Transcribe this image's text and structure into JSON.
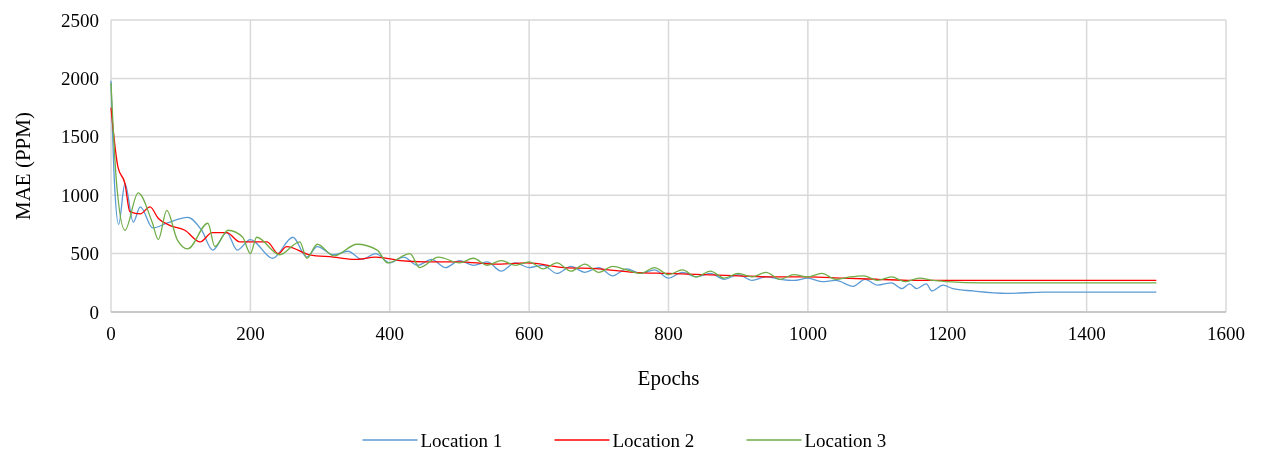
{
  "chart_data": {
    "type": "line",
    "xlabel": "Epochs",
    "ylabel": "MAE (PPM)",
    "xlim": [
      0,
      1600
    ],
    "xticks": [
      0,
      200,
      400,
      600,
      800,
      1000,
      1200,
      1400,
      1600
    ],
    "ylim": [
      0,
      2500
    ],
    "yticks": [
      0,
      500,
      1000,
      1500,
      2000,
      2500
    ],
    "grid": true,
    "legend": "bottom",
    "marker": "none",
    "line_style": "solid",
    "series": [
      {
        "name": "Location 1",
        "color": "#5b9bd5",
        "x": [
          0,
          5,
          11,
          20,
          32,
          42,
          60,
          80,
          110,
          130,
          146,
          166,
          181,
          200,
          232,
          261,
          281,
          296,
          319,
          340,
          360,
          380,
          400,
          420,
          440,
          460,
          480,
          500,
          520,
          540,
          560,
          580,
          600,
          620,
          640,
          660,
          680,
          700,
          720,
          740,
          760,
          780,
          800,
          820,
          840,
          860,
          880,
          900,
          920,
          940,
          960,
          980,
          1000,
          1020,
          1040,
          1065,
          1082,
          1100,
          1120,
          1135,
          1146,
          1156,
          1170,
          1178,
          1194,
          1208,
          1237,
          1285,
          1340,
          1395,
          1450,
          1500
        ],
        "values": [
          1980,
          1100,
          750,
          1100,
          770,
          900,
          720,
          760,
          810,
          700,
          530,
          680,
          530,
          620,
          460,
          640,
          470,
          560,
          490,
          520,
          450,
          500,
          420,
          470,
          400,
          450,
          380,
          440,
          400,
          430,
          350,
          420,
          380,
          400,
          330,
          390,
          340,
          380,
          310,
          370,
          330,
          360,
          290,
          340,
          300,
          330,
          280,
          320,
          270,
          300,
          280,
          270,
          290,
          260,
          270,
          220,
          280,
          230,
          250,
          200,
          240,
          200,
          240,
          180,
          230,
          200,
          180,
          160,
          170,
          170,
          170,
          170
        ]
      },
      {
        "name": "Location 2",
        "color": "#ff0000",
        "x": [
          0,
          10,
          20,
          27,
          42,
          56,
          68,
          85,
          106,
          128,
          145,
          166,
          185,
          224,
          240,
          252,
          285,
          319,
          350,
          380,
          415,
          450,
          500,
          550,
          597,
          650,
          700,
          750,
          798,
          850,
          900,
          950,
          1000,
          1050,
          1100,
          1150,
          1200,
          1300,
          1400,
          1500
        ],
        "values": [
          1750,
          1240,
          1100,
          860,
          840,
          900,
          800,
          740,
          700,
          600,
          680,
          680,
          600,
          600,
          500,
          560,
          490,
          470,
          450,
          470,
          440,
          430,
          430,
          410,
          420,
          380,
          370,
          340,
          330,
          320,
          310,
          300,
          300,
          290,
          280,
          270,
          270,
          270,
          270,
          270
        ]
      },
      {
        "name": "Location 3",
        "color": "#70ad47",
        "x": [
          0,
          8,
          20,
          39,
          59,
          68,
          80,
          95,
          110,
          139,
          149,
          168,
          189,
          200,
          209,
          242,
          271,
          281,
          296,
          320,
          353,
          382,
          397,
          429,
          443,
          470,
          500,
          520,
          540,
          560,
          580,
          600,
          620,
          640,
          660,
          680,
          700,
          720,
          740,
          760,
          780,
          800,
          820,
          840,
          860,
          880,
          900,
          920,
          940,
          960,
          980,
          1000,
          1020,
          1040,
          1060,
          1080,
          1100,
          1120,
          1140,
          1160,
          1180,
          1200,
          1250,
          1300,
          1400,
          1500
        ],
        "values": [
          1960,
          1100,
          700,
          1020,
          770,
          620,
          870,
          620,
          540,
          760,
          560,
          700,
          640,
          500,
          640,
          490,
          600,
          460,
          580,
          480,
          580,
          530,
          420,
          500,
          380,
          470,
          420,
          460,
          400,
          440,
          400,
          430,
          370,
          420,
          350,
          410,
          340,
          390,
          360,
          330,
          380,
          320,
          360,
          300,
          350,
          290,
          330,
          300,
          340,
          280,
          320,
          300,
          330,
          280,
          300,
          310,
          270,
          300,
          260,
          290,
          270,
          260,
          250,
          250,
          250,
          250
        ]
      }
    ]
  }
}
